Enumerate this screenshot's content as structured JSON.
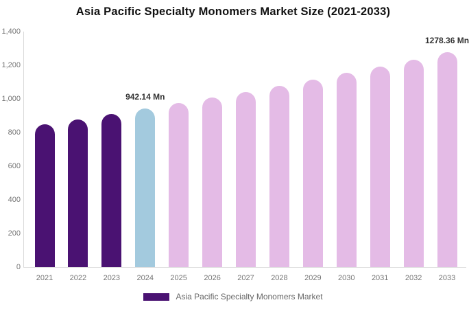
{
  "title": "Asia Pacific Specialty Monomers Market Size (2021-2033)",
  "colors": {
    "historical_bar": "#4a1272",
    "current_bar": "#a3cade",
    "forecast_bar": "#e4bbe6",
    "axis_line": "#d9d9d9",
    "baseline": "#e0e0e0",
    "tick_label": "#757575",
    "annotation_text": "#333333",
    "legend_text": "#666666",
    "title_text": "#111111",
    "background": "#ffffff"
  },
  "chart_data": {
    "type": "bar",
    "title": "Asia Pacific Specialty Monomers Market Size (2021-2033)",
    "categories": [
      "2021",
      "2022",
      "2023",
      "2024",
      "2025",
      "2026",
      "2027",
      "2028",
      "2029",
      "2030",
      "2031",
      "2032",
      "2033"
    ],
    "values": [
      851,
      880,
      911,
      942.14,
      975,
      1008,
      1043,
      1079,
      1116,
      1155,
      1194,
      1236,
      1278.36
    ],
    "value_unit": "Mn",
    "bar_color_keys": [
      "historical_bar",
      "historical_bar",
      "historical_bar",
      "current_bar",
      "forecast_bar",
      "forecast_bar",
      "forecast_bar",
      "forecast_bar",
      "forecast_bar",
      "forecast_bar",
      "forecast_bar",
      "forecast_bar",
      "forecast_bar"
    ],
    "annotations": [
      {
        "category": "2024",
        "text": "942.14 Mn"
      },
      {
        "category": "2033",
        "text": "1278.36 Mn"
      }
    ],
    "xlabel": "",
    "ylabel": "",
    "ylim": [
      0,
      1400
    ],
    "yticks": [
      {
        "label": "0",
        "value": 0
      },
      {
        "label": "200",
        "value": 200
      },
      {
        "label": "400",
        "value": 400
      },
      {
        "label": "600",
        "value": 600
      },
      {
        "label": "800",
        "value": 800
      },
      {
        "label": "1,000",
        "value": 1000
      },
      {
        "label": "1,200",
        "value": 1200
      },
      {
        "label": "1,400",
        "value": 1400
      }
    ],
    "grid": false,
    "legend_position": "bottom-center",
    "legend": {
      "label": "Asia Pacific Specialty Monomers Market",
      "swatch_color": "#4a1272"
    }
  }
}
